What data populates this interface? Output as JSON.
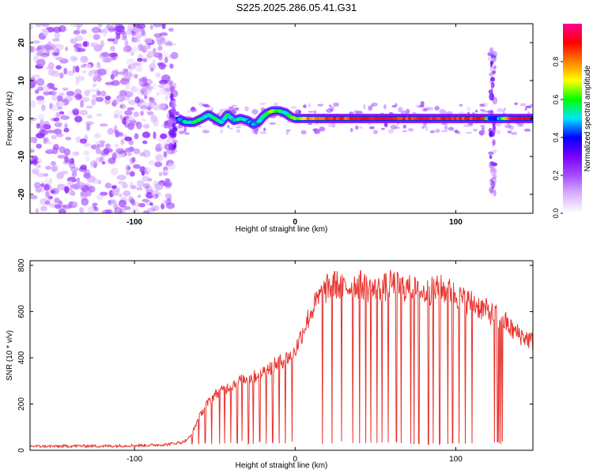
{
  "title": "S225.2025.286.05.41.G31",
  "chart_data": [
    {
      "type": "heatmap",
      "title": "S225.2025.286.05.41.G31",
      "xlabel": "Height of straight line (km)",
      "ylabel": "Frequency (Hz)",
      "xlim": [
        -165,
        148
      ],
      "ylim": [
        -25,
        25
      ],
      "x_ticks": [
        "-100",
        "0",
        "100"
      ],
      "y_ticks": [
        "-20",
        "-10",
        "0",
        "10",
        "20"
      ],
      "colorbar": {
        "label": "Normalized spectral amplitude",
        "range": [
          0,
          1
        ],
        "ticks": [
          "0.0",
          "0.2",
          "0.4",
          "0.6",
          "0.8"
        ],
        "colors": [
          "#ffffff",
          "#d9b3ff",
          "#a64dff",
          "#7a00ff",
          "#0000ff",
          "#00e5ff",
          "#00ff00",
          "#ffff00",
          "#ff8000",
          "#ff0000",
          "#ff0090"
        ]
      },
      "noise_region_x": [
        -165,
        -75
      ],
      "ridge": {
        "x": [
          -73,
          -68,
          -63,
          -58,
          -54,
          -50,
          -46,
          -42,
          -38,
          -34,
          -30,
          -26,
          -23,
          -20,
          -17,
          -14,
          -10,
          -6,
          -3,
          0,
          10,
          20,
          30,
          40,
          50,
          60,
          70,
          80,
          90,
          100,
          110,
          118,
          122,
          128,
          135,
          148
        ],
        "y": [
          0,
          -1,
          -1,
          0,
          1,
          0,
          -1,
          1,
          -0.5,
          0,
          -0.5,
          -1.5,
          -1,
          0.5,
          1.5,
          2,
          2,
          1.5,
          0.5,
          0,
          0,
          0,
          0,
          0,
          0,
          0,
          0,
          0,
          0,
          0,
          0,
          0,
          0,
          0,
          0,
          0
        ],
        "amplitude": [
          0.45,
          0.5,
          0.6,
          0.55,
          0.5,
          0.55,
          0.5,
          0.55,
          0.5,
          0.55,
          0.5,
          0.45,
          0.5,
          0.55,
          0.6,
          0.65,
          0.6,
          0.55,
          0.6,
          0.65,
          0.8,
          0.85,
          0.85,
          0.9,
          0.9,
          0.9,
          0.85,
          0.9,
          0.9,
          0.9,
          0.85,
          0.9,
          0.35,
          0.5,
          0.9,
          0.9
        ]
      },
      "vertical_artifacts_x": [
        -76,
        123
      ]
    },
    {
      "type": "line",
      "xlabel": "Height of straight line (km)",
      "ylabel": "SNR (10 * v/v)",
      "xlim": [
        -165,
        148
      ],
      "ylim": [
        0,
        820
      ],
      "x_ticks": [
        "-100",
        "0",
        "100"
      ],
      "y_ticks": [
        "0",
        "200",
        "400",
        "600",
        "800"
      ],
      "color": "#e8332d",
      "series": [
        {
          "x": [
            -165,
            -150,
            -135,
            -120,
            -105,
            -90,
            -80,
            -75,
            -70,
            -65,
            -60,
            -55,
            -50,
            -45,
            -40,
            -35,
            -30,
            -25,
            -20,
            -15,
            -10,
            -5,
            0,
            5,
            10,
            15,
            20,
            25,
            30,
            35,
            40,
            45,
            50,
            55,
            60,
            65,
            70,
            75,
            80,
            85,
            90,
            95,
            100,
            105,
            110,
            115,
            120,
            125,
            130,
            135,
            140,
            148
          ],
          "y": [
            18,
            17,
            19,
            18,
            20,
            22,
            25,
            30,
            35,
            60,
            140,
            200,
            240,
            260,
            280,
            300,
            310,
            320,
            340,
            360,
            380,
            400,
            430,
            520,
            600,
            660,
            700,
            720,
            700,
            710,
            720,
            700,
            690,
            700,
            720,
            710,
            700,
            690,
            680,
            690,
            700,
            690,
            670,
            650,
            640,
            620,
            600,
            580,
            560,
            520,
            500,
            470
          ]
        }
      ],
      "dropouts_x": [
        -68,
        -64,
        -60,
        -56,
        -52,
        -47,
        -44,
        -40,
        -36,
        -33,
        -29,
        -26,
        -22,
        -18,
        -14,
        -10,
        -6,
        -2,
        17,
        23,
        29,
        36,
        40,
        44,
        47,
        51,
        54,
        58,
        63,
        66,
        72,
        74,
        77,
        83,
        86,
        90,
        95,
        98,
        102,
        106,
        110,
        124,
        126,
        127,
        128,
        129
      ]
    }
  ]
}
